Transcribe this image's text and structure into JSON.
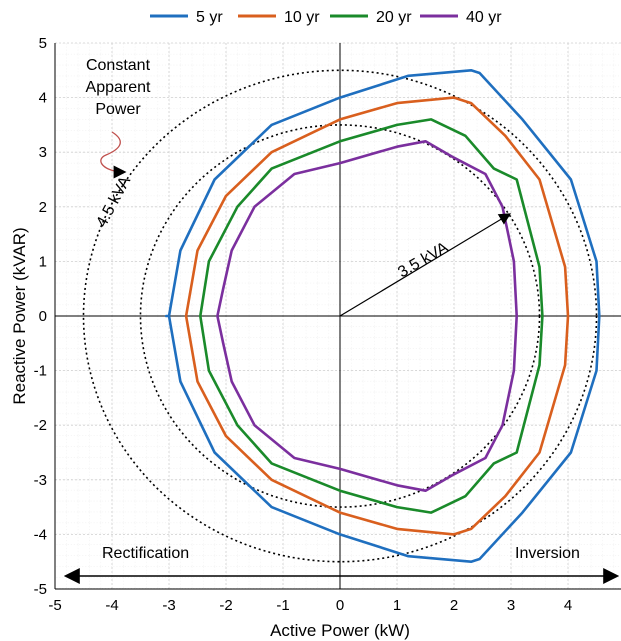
{
  "chart_data": {
    "type": "line",
    "xlabel": "Active Power (kW)",
    "ylabel": "Reactive Power (kVAR)",
    "xlim": [
      -5,
      5
    ],
    "ylim": [
      -5,
      5
    ],
    "xticks": [
      "-5",
      "-4",
      "-3",
      "-2",
      "-1",
      "0",
      "1",
      "2",
      "3",
      "4",
      "5"
    ],
    "yticks": [
      "-5",
      "-4",
      "-3",
      "-2",
      "-1",
      "0",
      "1",
      "2",
      "3",
      "4",
      "5"
    ],
    "grid": true,
    "legend_position": "top",
    "series": [
      {
        "name": "5 yr",
        "color": "#1f6fbf",
        "x": [
          0,
          1.2,
          2.3,
          2.45,
          3.2,
          4.05,
          4.5,
          4.55,
          4.5,
          4.05,
          3.2,
          2.45,
          2.3,
          1.2,
          0,
          -1.2,
          -2.2,
          -2.8,
          -3.0,
          -3.05,
          -3.0,
          -2.8,
          -2.2,
          -1.2,
          0
        ],
        "y": [
          4.0,
          4.4,
          4.5,
          4.45,
          3.6,
          2.5,
          1.0,
          0,
          -1.0,
          -2.5,
          -3.6,
          -4.45,
          -4.5,
          -4.4,
          -4.0,
          -3.5,
          -2.5,
          -1.2,
          0,
          0,
          0,
          1.2,
          2.5,
          3.5,
          4.0
        ]
      },
      {
        "name": "10 yr",
        "color": "#d95f1e",
        "x": [
          0,
          1.0,
          2.0,
          2.3,
          2.9,
          3.5,
          3.95,
          4.0,
          3.95,
          3.5,
          2.9,
          2.3,
          2.0,
          1.0,
          0,
          -1.2,
          -2.0,
          -2.5,
          -2.7,
          -2.5,
          -2.0,
          -1.2,
          0
        ],
        "y": [
          3.6,
          3.9,
          4.0,
          3.9,
          3.3,
          2.5,
          0.9,
          0,
          -0.9,
          -2.5,
          -3.3,
          -3.9,
          -4.0,
          -3.9,
          -3.6,
          -3.0,
          -2.2,
          -1.2,
          0,
          1.2,
          2.2,
          3.0,
          3.6
        ]
      },
      {
        "name": "20 yr",
        "color": "#1a8a2a",
        "x": [
          0,
          1.0,
          1.6,
          2.2,
          2.7,
          3.1,
          3.5,
          3.55,
          3.5,
          3.1,
          2.7,
          2.2,
          1.6,
          1.0,
          0,
          -1.2,
          -1.8,
          -2.3,
          -2.45,
          -2.3,
          -1.8,
          -1.2,
          0
        ],
        "y": [
          3.2,
          3.5,
          3.6,
          3.3,
          2.7,
          2.5,
          0.9,
          0,
          -0.9,
          -2.5,
          -2.7,
          -3.3,
          -3.6,
          -3.5,
          -3.2,
          -2.7,
          -2.0,
          -1.0,
          0,
          1.0,
          2.0,
          2.7,
          3.2
        ]
      },
      {
        "name": "40 yr",
        "color": "#7b2f9e",
        "x": [
          0,
          1.0,
          1.5,
          2.0,
          2.55,
          2.85,
          3.05,
          3.1,
          3.05,
          2.85,
          2.55,
          2.0,
          1.5,
          1.0,
          0,
          -0.8,
          -1.5,
          -1.9,
          -2.05,
          -2.15,
          -2.05,
          -1.9,
          -1.5,
          -0.8,
          0
        ],
        "y": [
          2.8,
          3.1,
          3.2,
          2.9,
          2.6,
          2.0,
          1.0,
          0,
          -1.0,
          -2.0,
          -2.6,
          -2.9,
          -3.2,
          -3.1,
          -2.8,
          -2.6,
          -2.0,
          -1.2,
          -0.5,
          0,
          0.5,
          1.2,
          2.0,
          2.6,
          2.8
        ]
      }
    ],
    "reference_circles": [
      {
        "label": "4.5 kVA",
        "radius": 4.5
      },
      {
        "label": "3.5 kVA",
        "radius": 3.5
      }
    ],
    "annotations": {
      "constant_power": [
        "Constant",
        "Apparent",
        "Power"
      ],
      "rectification": "Rectification",
      "inversion": "Inversion"
    }
  }
}
